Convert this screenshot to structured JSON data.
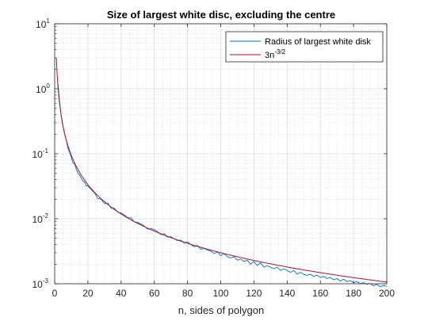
{
  "chart_data": {
    "type": "line",
    "title": "Size of largest white disc, excluding the centre",
    "xlabel": "n, sides of polygon",
    "ylabel": "",
    "xlim": [
      0,
      200
    ],
    "ylim": [
      0.001,
      10
    ],
    "yscale": "log",
    "grid": "major and minor",
    "legend_position": "top-right",
    "x_ticks": [
      0,
      20,
      40,
      60,
      80,
      100,
      120,
      140,
      160,
      180,
      200
    ],
    "y_ticks": [
      {
        "base": "10",
        "exponent": "1",
        "value": 10
      },
      {
        "base": "10",
        "exponent": "0",
        "value": 1
      },
      {
        "base": "10",
        "exponent": "-1",
        "value": 0.1
      },
      {
        "base": "10",
        "exponent": "-2",
        "value": 0.01
      },
      {
        "base": "10",
        "exponent": "-3",
        "value": 0.001
      }
    ],
    "series": [
      {
        "name": "Radius of largest white disk",
        "color": "#0072bd",
        "x": [
          2,
          3,
          4,
          5,
          6,
          7,
          8,
          9,
          10,
          11,
          12,
          13,
          14,
          15,
          16,
          17,
          18,
          19,
          20,
          22,
          24,
          26,
          28,
          30,
          32,
          34,
          36,
          38,
          40,
          42,
          44,
          46,
          48,
          50,
          52,
          54,
          56,
          58,
          60,
          62,
          64,
          66,
          68,
          70,
          72,
          74,
          76,
          78,
          80,
          82,
          84,
          86,
          88,
          90,
          92,
          94,
          96,
          98,
          100,
          102,
          104,
          106,
          108,
          110,
          112,
          114,
          116,
          118,
          120,
          122,
          124,
          126,
          128,
          130,
          132,
          134,
          136,
          138,
          140,
          142,
          144,
          146,
          148,
          150,
          152,
          154,
          156,
          158,
          160,
          162,
          164,
          166,
          168,
          170,
          172,
          174,
          176,
          178,
          180,
          182,
          184,
          186,
          188,
          190,
          192,
          194,
          196,
          198,
          200
        ],
        "y": [
          1.2,
          0.62,
          0.37,
          0.26,
          0.2,
          0.16,
          0.12,
          0.105,
          0.088,
          0.072,
          0.07,
          0.058,
          0.05,
          0.047,
          0.042,
          0.038,
          0.037,
          0.032,
          0.032,
          0.028,
          0.025,
          0.0205,
          0.02,
          0.017,
          0.0175,
          0.0145,
          0.0145,
          0.0126,
          0.0123,
          0.0114,
          0.0104,
          0.0103,
          0.0089,
          0.0088,
          0.0083,
          0.0077,
          0.0069,
          0.0071,
          0.0068,
          0.0063,
          0.0057,
          0.0059,
          0.0052,
          0.0053,
          0.0049,
          0.0046,
          0.0047,
          0.0042,
          0.0044,
          0.004,
          0.0037,
          0.0039,
          0.0034,
          0.0035,
          0.0033,
          0.0032,
          0.0029,
          0.0031,
          0.0027,
          0.0029,
          0.0026,
          0.0025,
          0.0026,
          0.0023,
          0.0024,
          0.0022,
          0.0023,
          0.002,
          0.0022,
          0.0019,
          0.0021,
          0.0018,
          0.0019,
          0.0018,
          0.0017,
          0.0018,
          0.0016,
          0.0017,
          0.0016,
          0.0015,
          0.0016,
          0.0014,
          0.0015,
          0.0014,
          0.00135,
          0.0014,
          0.0013,
          0.00135,
          0.00125,
          0.0013,
          0.0012,
          0.00125,
          0.00115,
          0.0012,
          0.0011,
          0.00118,
          0.00108,
          0.00112,
          0.00104,
          0.00108,
          0.001,
          0.00104,
          0.00098,
          0.00101,
          0.00093,
          0.00098,
          0.0009,
          0.00094,
          0.00091
        ]
      },
      {
        "name": "3n^-3/2",
        "color": "#a2142f",
        "formula": "3*n^(-1.5)",
        "x_start": 1,
        "x_end": 200
      }
    ]
  },
  "legend": {
    "entries": [
      {
        "base": "Radius of largest white disk",
        "exponent": ""
      },
      {
        "base": "3n",
        "exponent": "-3/2"
      }
    ]
  }
}
